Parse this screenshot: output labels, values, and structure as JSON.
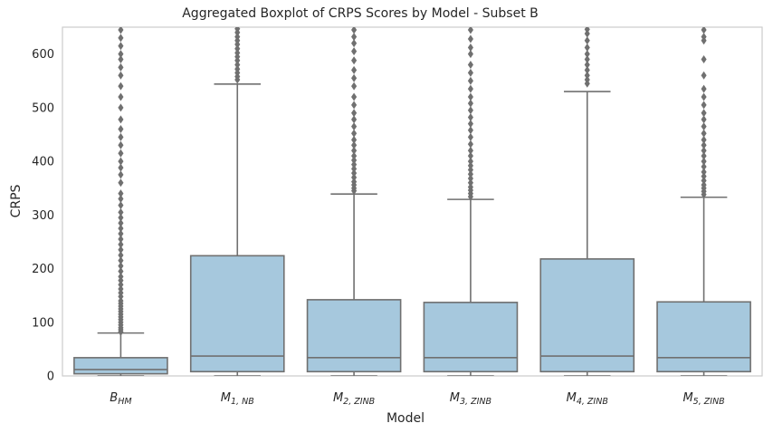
{
  "chart_data": {
    "type": "box",
    "title": "Aggregated Boxplot of CRPS Scores by Model - Subset B",
    "xlabel": "Model",
    "ylabel": "CRPS",
    "ylim": [
      0,
      650
    ],
    "yticks": [
      0,
      100,
      200,
      300,
      400,
      500,
      600
    ],
    "grid": false,
    "box_color": "#a6c8dd",
    "line_color": "#707070",
    "categories": [
      {
        "base": "B",
        "sub": "HM"
      },
      {
        "base": "M",
        "sub": "1, NB"
      },
      {
        "base": "M",
        "sub": "2, ZINB"
      },
      {
        "base": "M",
        "sub": "3, ZINB"
      },
      {
        "base": "M",
        "sub": "4, ZINB"
      },
      {
        "base": "M",
        "sub": "5, ZINB"
      }
    ],
    "boxes": [
      {
        "whisker_low": 0,
        "q1": 4,
        "median": 12,
        "q3": 34,
        "whisker_high": 80,
        "outliers": [
          82,
          86,
          90,
          95,
          100,
          105,
          110,
          115,
          120,
          125,
          130,
          135,
          140,
          148,
          155,
          162,
          170,
          178,
          185,
          195,
          205,
          215,
          225,
          235,
          245,
          255,
          265,
          275,
          285,
          295,
          305,
          318,
          330,
          340,
          360,
          375,
          388,
          400,
          415,
          430,
          445,
          460,
          478,
          500,
          520,
          540,
          560,
          575,
          590,
          600,
          615,
          630,
          645
        ]
      },
      {
        "whisker_low": 0,
        "q1": 8,
        "median": 37,
        "q3": 224,
        "whisker_high": 544,
        "outliers": [
          552,
          558,
          565,
          572,
          580,
          588,
          595,
          602,
          610,
          618,
          625,
          632,
          640,
          647
        ]
      },
      {
        "whisker_low": 0,
        "q1": 8,
        "median": 34,
        "q3": 142,
        "whisker_high": 339,
        "outliers": [
          345,
          350,
          356,
          362,
          370,
          378,
          386,
          394,
          402,
          410,
          420,
          430,
          440,
          452,
          465,
          478,
          490,
          505,
          520,
          540,
          555,
          570,
          588,
          605,
          620,
          632,
          645
        ]
      },
      {
        "whisker_low": 0,
        "q1": 8,
        "median": 34,
        "q3": 137,
        "whisker_high": 329,
        "outliers": [
          334,
          340,
          346,
          352,
          360,
          368,
          376,
          384,
          392,
          400,
          410,
          420,
          432,
          445,
          458,
          470,
          482,
          495,
          508,
          520,
          535,
          550,
          565,
          580,
          600,
          612,
          628,
          645
        ]
      },
      {
        "whisker_low": 0,
        "q1": 8,
        "median": 37,
        "q3": 218,
        "whisker_high": 530,
        "outliers": [
          545,
          552,
          560,
          570,
          580,
          590,
          600,
          612,
          625,
          638,
          646
        ]
      },
      {
        "whisker_low": 0,
        "q1": 8,
        "median": 34,
        "q3": 138,
        "whisker_high": 333,
        "outliers": [
          338,
          344,
          350,
          356,
          364,
          372,
          380,
          390,
          400,
          410,
          420,
          430,
          440,
          452,
          465,
          478,
          490,
          505,
          520,
          535,
          560,
          590,
          625,
          632,
          645
        ]
      }
    ]
  }
}
